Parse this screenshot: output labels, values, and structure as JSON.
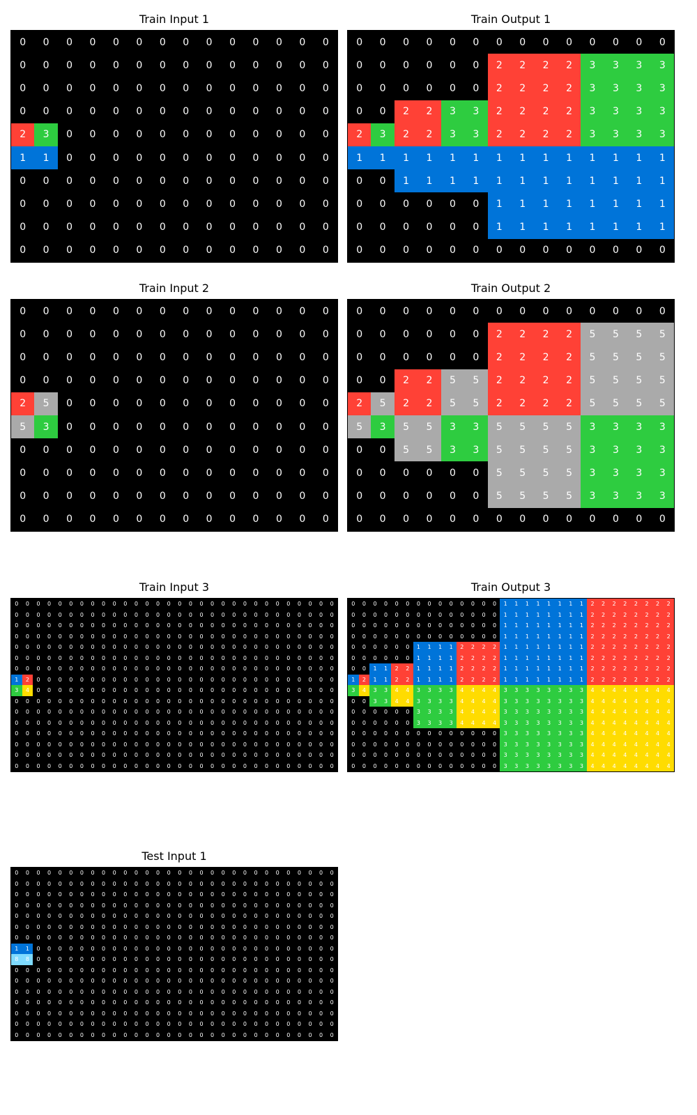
{
  "palette": {
    "0": "#000000",
    "1": "#0074d9",
    "2": "#ff4136",
    "3": "#2ecc40",
    "4": "#ffdc00",
    "5": "#aaaaaa",
    "6": "#f012be",
    "7": "#ff851b",
    "8": "#7fdbff",
    "9": "#870c25"
  },
  "panels": [
    {
      "id": "train-input-1",
      "title": "Train Input 1",
      "rows": 10,
      "cols": 14,
      "base": 0,
      "rects": [
        [
          4,
          0,
          1,
          1,
          2
        ],
        [
          4,
          1,
          1,
          1,
          3
        ],
        [
          5,
          0,
          1,
          2,
          1
        ]
      ]
    },
    {
      "id": "train-output-1",
      "title": "Train Output 1",
      "rows": 10,
      "cols": 14,
      "base": 0,
      "rects": [
        [
          1,
          6,
          4,
          4,
          2
        ],
        [
          1,
          10,
          4,
          4,
          3
        ],
        [
          3,
          2,
          2,
          2,
          2
        ],
        [
          3,
          4,
          2,
          2,
          3
        ],
        [
          4,
          0,
          1,
          1,
          2
        ],
        [
          4,
          1,
          1,
          1,
          3
        ],
        [
          5,
          0,
          1,
          14,
          1
        ],
        [
          6,
          2,
          1,
          12,
          1
        ],
        [
          7,
          6,
          2,
          8,
          1
        ]
      ]
    },
    {
      "id": "train-input-2",
      "title": "Train Input 2",
      "rows": 10,
      "cols": 14,
      "base": 0,
      "rects": [
        [
          4,
          0,
          1,
          1,
          2
        ],
        [
          4,
          1,
          1,
          1,
          5
        ],
        [
          5,
          0,
          1,
          1,
          5
        ],
        [
          5,
          1,
          1,
          1,
          3
        ]
      ]
    },
    {
      "id": "train-output-2",
      "title": "Train Output 2",
      "rows": 10,
      "cols": 14,
      "base": 0,
      "rects": [
        [
          1,
          6,
          4,
          4,
          2
        ],
        [
          1,
          10,
          4,
          4,
          5
        ],
        [
          5,
          6,
          4,
          4,
          5
        ],
        [
          5,
          10,
          4,
          4,
          3
        ],
        [
          3,
          2,
          2,
          2,
          2
        ],
        [
          3,
          4,
          2,
          2,
          5
        ],
        [
          5,
          2,
          2,
          2,
          5
        ],
        [
          5,
          4,
          2,
          2,
          3
        ],
        [
          4,
          0,
          1,
          1,
          2
        ],
        [
          4,
          1,
          1,
          1,
          5
        ],
        [
          5,
          0,
          1,
          1,
          5
        ],
        [
          5,
          1,
          1,
          1,
          3
        ]
      ]
    },
    {
      "id": "train-input-3",
      "title": "Train Input 3",
      "rows": 16,
      "cols": 30,
      "base": 0,
      "rects": [
        [
          7,
          0,
          1,
          1,
          1
        ],
        [
          7,
          1,
          1,
          1,
          2
        ],
        [
          8,
          0,
          1,
          1,
          3
        ],
        [
          8,
          1,
          1,
          1,
          4
        ]
      ]
    },
    {
      "id": "train-output-3",
      "title": "Train Output 3",
      "rows": 16,
      "cols": 30,
      "base": 0,
      "rects": [
        [
          0,
          14,
          8,
          8,
          1
        ],
        [
          0,
          22,
          8,
          8,
          2
        ],
        [
          8,
          14,
          8,
          8,
          3
        ],
        [
          8,
          22,
          8,
          8,
          4
        ],
        [
          4,
          6,
          4,
          4,
          1
        ],
        [
          4,
          10,
          4,
          4,
          2
        ],
        [
          8,
          6,
          4,
          4,
          3
        ],
        [
          8,
          10,
          4,
          4,
          4
        ],
        [
          6,
          2,
          2,
          2,
          1
        ],
        [
          6,
          4,
          2,
          2,
          2
        ],
        [
          8,
          2,
          2,
          2,
          3
        ],
        [
          8,
          4,
          2,
          2,
          4
        ],
        [
          7,
          0,
          1,
          1,
          1
        ],
        [
          7,
          1,
          1,
          1,
          2
        ],
        [
          8,
          0,
          1,
          1,
          3
        ],
        [
          8,
          1,
          1,
          1,
          4
        ]
      ]
    },
    {
      "id": "test-input-1",
      "title": "Test Input 1",
      "rows": 16,
      "cols": 30,
      "base": 0,
      "rects": [
        [
          7,
          0,
          1,
          2,
          1
        ],
        [
          8,
          0,
          1,
          2,
          8
        ]
      ]
    }
  ]
}
